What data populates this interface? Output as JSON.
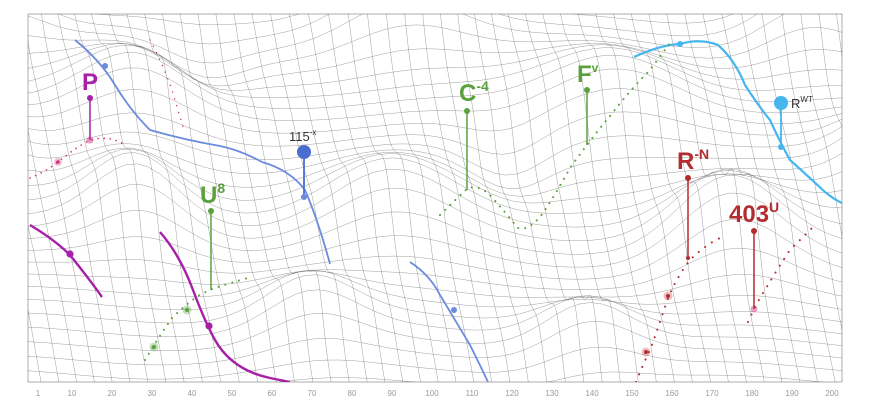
{
  "chart_data": {
    "type": "wireframe-surface",
    "x_axis": {
      "ticks": [
        "1",
        "10",
        "20",
        "30",
        "40",
        "50",
        "60",
        "70",
        "80",
        "90",
        "100",
        "110",
        "120",
        "130",
        "140",
        "150",
        "160",
        "170",
        "180",
        "190",
        "200"
      ]
    },
    "annotations": [
      {
        "id": "p",
        "base": "P",
        "sup": "",
        "color": "#a620a8"
      },
      {
        "id": "u8",
        "base": "U",
        "sup": "8",
        "color": "#5aa13c"
      },
      {
        "id": "n115",
        "base": "115",
        "sup": "-x",
        "color": "#333333"
      },
      {
        "id": "c4",
        "base": "C",
        "sup": "-4",
        "color": "#5aa13c"
      },
      {
        "id": "fv",
        "base": "F",
        "sup": "v",
        "color": "#5aa13c"
      },
      {
        "id": "rwt",
        "base": "R",
        "sup": "WT",
        "color": "#333333"
      },
      {
        "id": "rn",
        "base": "R",
        "sup": "-N",
        "color": "#b32d30"
      },
      {
        "id": "n403u",
        "base": "403",
        "sup": "U",
        "color": "#b32d30"
      }
    ],
    "series_colors": {
      "purple": "#a620a8",
      "blue": "#6b8bdc",
      "light_blue": "#45b6ee",
      "green": "#5aa13c",
      "red": "#b32d30",
      "magenta": "#d0307a"
    },
    "grid": false,
    "legend": "none"
  }
}
